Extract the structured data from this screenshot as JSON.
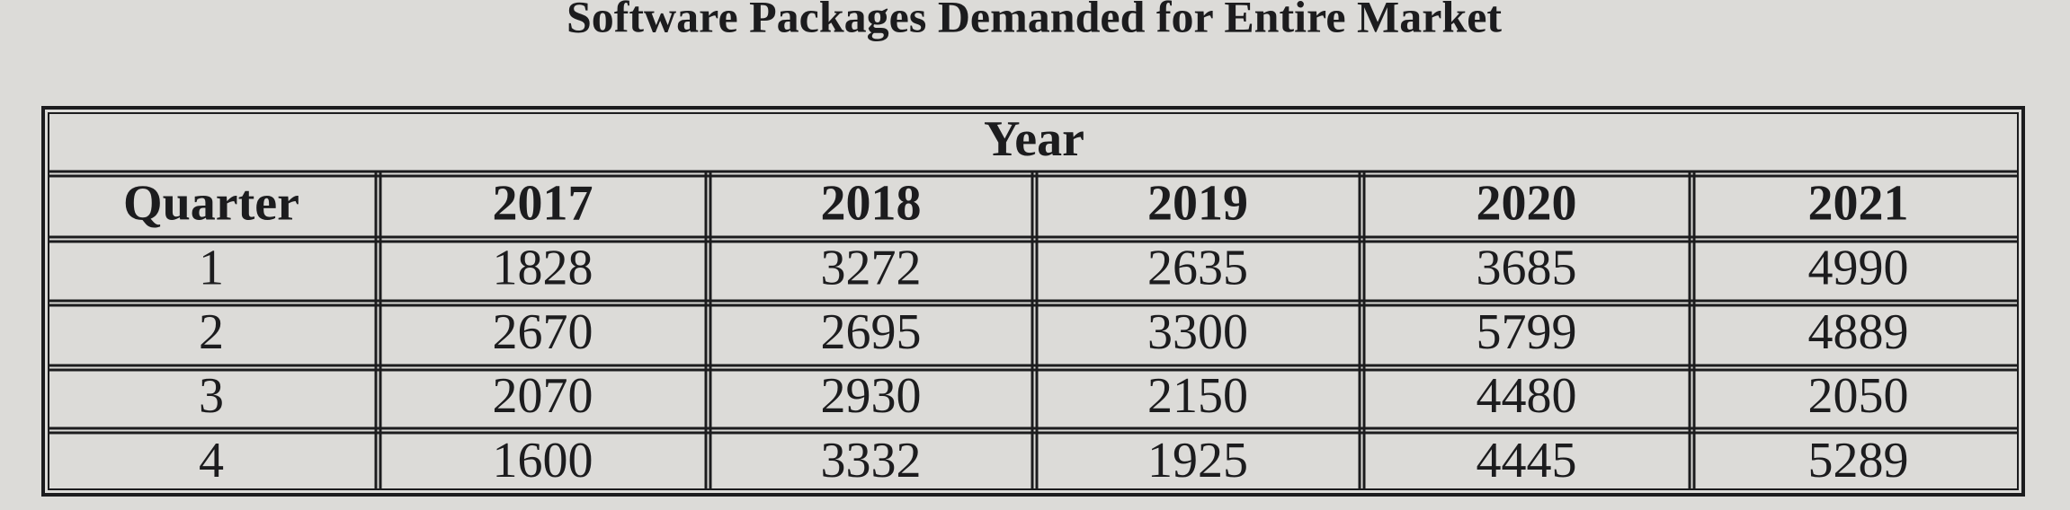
{
  "title": "Software Packages Demanded for Entire Market",
  "table": {
    "group_header": "Year",
    "columns": [
      "Quarter",
      "2017",
      "2018",
      "2019",
      "2020",
      "2021"
    ],
    "rows": [
      [
        "1",
        "1828",
        "3272",
        "2635",
        "3685",
        "4990"
      ],
      [
        "2",
        "2670",
        "2695",
        "3300",
        "5799",
        "4889"
      ],
      [
        "3",
        "2070",
        "2930",
        "2150",
        "4480",
        "2050"
      ],
      [
        "4",
        "1600",
        "3332",
        "1925",
        "4445",
        "5289"
      ]
    ]
  }
}
